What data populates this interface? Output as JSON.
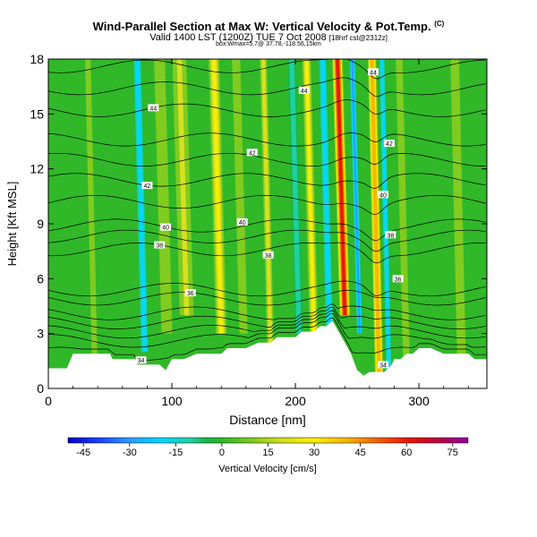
{
  "title": {
    "main": "Wind-Parallel Section at Max W: Vertical Velocity & Pot.Temp.",
    "copyright": "(C)",
    "valid": "Valid 1400 LST (1200Z) TUE 7 Oct 2008",
    "valid_suffix": "[18hrf cst@2312z]",
    "subtitle": "box:Wmax=5.7@ 37.78,-118.56,15km"
  },
  "chart_data": {
    "type": "heatmap",
    "xlabel": "Distance [nm]",
    "ylabel": "Height [Kft MSL]",
    "xlim": [
      0,
      355
    ],
    "ylim": [
      0,
      18
    ],
    "xticks": [
      "0",
      "100",
      "200",
      "300"
    ],
    "xtick_values": [
      0,
      100,
      200,
      300
    ],
    "yticks": [
      "0",
      "3",
      "6",
      "9",
      "12",
      "15",
      "18"
    ],
    "ytick_values": [
      0,
      3,
      6,
      9,
      12,
      15,
      18
    ],
    "colorbar": {
      "label": "Vertical Velocity [cm/s]",
      "ticks": [
        "-45",
        "-30",
        "-15",
        "0",
        "15",
        "30",
        "45",
        "60",
        "75"
      ],
      "tick_values": [
        -45,
        -30,
        -15,
        0,
        15,
        30,
        45,
        60,
        75
      ],
      "range": [
        -50,
        80
      ],
      "stops": [
        {
          "v": -50,
          "c": "#0000c8"
        },
        {
          "v": -40,
          "c": "#1a40ff"
        },
        {
          "v": -30,
          "c": "#2a9cff"
        },
        {
          "v": -20,
          "c": "#00d8ff"
        },
        {
          "v": -10,
          "c": "#20d0a0"
        },
        {
          "v": -5,
          "c": "#18b848"
        },
        {
          "v": 0,
          "c": "#30b828"
        },
        {
          "v": 10,
          "c": "#80cc20"
        },
        {
          "v": 20,
          "c": "#d8e020"
        },
        {
          "v": 30,
          "c": "#f8f000"
        },
        {
          "v": 40,
          "c": "#f8b800"
        },
        {
          "v": 50,
          "c": "#f06800"
        },
        {
          "v": 60,
          "c": "#e81800"
        },
        {
          "v": 70,
          "c": "#c00040"
        },
        {
          "v": 80,
          "c": "#9000a0"
        }
      ]
    },
    "velocity_bands": [
      {
        "x": 10,
        "w": 10,
        "amp": 5,
        "z": [
          0,
          18
        ]
      },
      {
        "x": 38,
        "w": 9,
        "amp": 6,
        "z": [
          0,
          18
        ]
      },
      {
        "x": 78,
        "w": 4,
        "amp": -20,
        "z": [
          2,
          18
        ]
      },
      {
        "x": 96,
        "w": 11,
        "amp": 8,
        "z": [
          3,
          18
        ]
      },
      {
        "x": 112,
        "w": 8,
        "amp": 16,
        "z": [
          4,
          18
        ]
      },
      {
        "x": 140,
        "w": 5,
        "amp": 30,
        "z": [
          3,
          18
        ]
      },
      {
        "x": 158,
        "w": 6,
        "amp": 10,
        "z": [
          3,
          18
        ]
      },
      {
        "x": 180,
        "w": 4,
        "amp": 25,
        "z": [
          2,
          18
        ]
      },
      {
        "x": 203,
        "w": 5,
        "amp": -12,
        "z": [
          3,
          18
        ]
      },
      {
        "x": 215,
        "w": 4,
        "amp": 30,
        "z": [
          3,
          18
        ]
      },
      {
        "x": 228,
        "w": 4,
        "amp": -22,
        "z": [
          2,
          18
        ]
      },
      {
        "x": 240,
        "w": 5,
        "amp": 65,
        "z": [
          4,
          18
        ]
      },
      {
        "x": 252,
        "w": 3,
        "amp": -30,
        "z": [
          3,
          18
        ]
      },
      {
        "x": 268,
        "w": 4,
        "amp": 45,
        "z": [
          0,
          18
        ]
      },
      {
        "x": 276,
        "w": 3,
        "amp": -20,
        "z": [
          0,
          18
        ]
      },
      {
        "x": 290,
        "w": 5,
        "amp": 10,
        "z": [
          1,
          18
        ]
      },
      {
        "x": 335,
        "w": 14,
        "amp": 6,
        "z": [
          0,
          18
        ]
      }
    ],
    "terrain": {
      "x": [
        0,
        15,
        20,
        30,
        50,
        52,
        60,
        70,
        72,
        80,
        90,
        95,
        100,
        110,
        120,
        140,
        145,
        160,
        170,
        180,
        185,
        200,
        205,
        215,
        220,
        225,
        230,
        235,
        240,
        245,
        250,
        252,
        255,
        260,
        262,
        268,
        272,
        278,
        280,
        285,
        290,
        295,
        300,
        310,
        320,
        330,
        340,
        345,
        355
      ],
      "z": [
        1.1,
        1.1,
        1.9,
        1.9,
        1.9,
        1.6,
        1.6,
        1.6,
        1.3,
        1.3,
        1.3,
        1.0,
        1.6,
        1.6,
        1.9,
        1.9,
        2.2,
        2.2,
        2.5,
        2.5,
        2.8,
        2.8,
        3.1,
        3.1,
        3.4,
        3.4,
        3.7,
        3.1,
        2.5,
        1.9,
        1.0,
        0.9,
        0.7,
        0.9,
        0.9,
        0.9,
        0.9,
        1.3,
        1.6,
        1.6,
        1.9,
        1.9,
        2.2,
        2.2,
        1.9,
        1.9,
        1.9,
        1.6,
        1.6
      ]
    },
    "isentropes": [
      {
        "label": "34",
        "base": 1.9,
        "label_x": 75
      },
      {
        "label": "",
        "base": 2.6
      },
      {
        "label": "",
        "base": 3.1
      },
      {
        "label": "",
        "base": 3.6
      },
      {
        "label": "",
        "base": 4.1
      },
      {
        "label": "36",
        "base": 4.9,
        "label_x": 115
      },
      {
        "label": "",
        "base": 5.4
      },
      {
        "label": "38",
        "base": 7.6,
        "label_x": 90
      },
      {
        "label": "",
        "base": 8.3
      },
      {
        "label": "40",
        "base": 8.9,
        "label_x": 95
      },
      {
        "label": "",
        "base": 10.2
      },
      {
        "label": "42",
        "base": 11.4,
        "label_x": 80
      },
      {
        "label": "",
        "base": 12.5
      },
      {
        "label": "",
        "base": 13.6
      },
      {
        "label": "44",
        "base": 15.2,
        "label_x": 85
      },
      {
        "label": "",
        "base": 16.4
      },
      {
        "label": "",
        "base": 17.6
      }
    ],
    "isentrope_extra_labels": [
      {
        "label": "42",
        "x": 165,
        "z": 12.9
      },
      {
        "label": "40",
        "x": 157,
        "z": 9.1
      },
      {
        "label": "38",
        "x": 178,
        "z": 7.3
      },
      {
        "label": "44",
        "x": 207,
        "z": 16.3
      },
      {
        "label": "44",
        "x": 263,
        "z": 17.3
      },
      {
        "label": "42",
        "x": 276,
        "z": 13.4
      },
      {
        "label": "40",
        "x": 271,
        "z": 10.6
      },
      {
        "label": "38",
        "x": 277,
        "z": 8.4
      },
      {
        "label": "36",
        "x": 283,
        "z": 6.0
      },
      {
        "label": "34",
        "x": 271,
        "z": 1.3
      }
    ]
  }
}
